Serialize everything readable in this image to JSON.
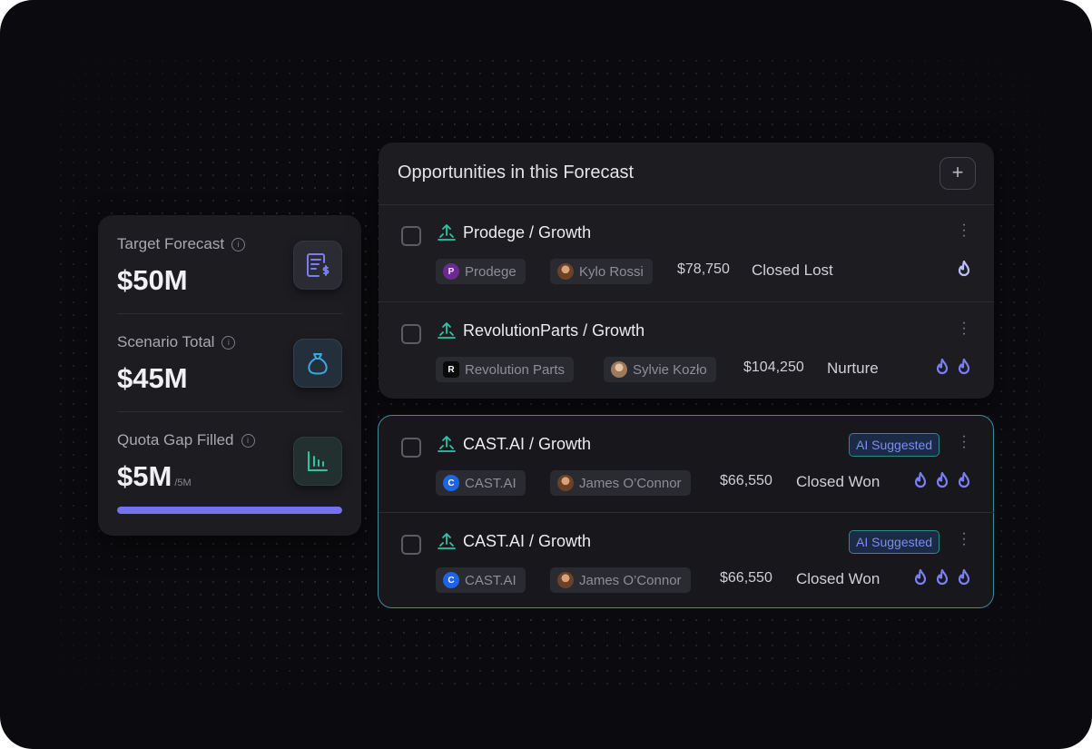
{
  "summary": {
    "metrics": [
      {
        "label": "Target Forecast",
        "value": "$50M",
        "icon": "invoice-dollar-icon"
      },
      {
        "label": "Scenario Total",
        "value": "$45M",
        "icon": "money-bag-icon"
      },
      {
        "label": "Quota Gap Filled",
        "value": "$5M",
        "suffix": "/5M",
        "icon": "bar-chart-icon"
      }
    ],
    "progress_fraction": 1.0,
    "progress_color": "#7472f0"
  },
  "forecast": {
    "title": "Opportunities in this Forecast",
    "add_label": "+",
    "opportunities": [
      {
        "title": "Prodege / Growth",
        "company": "Prodege",
        "owner": "Kylo Rossi",
        "amount": "$78,750",
        "stage": "Closed Lost",
        "heat": 1,
        "ai_suggested": false
      },
      {
        "title": "RevolutionParts / Growth",
        "company": "Revolution Parts",
        "owner": "Sylvie Kozło",
        "amount": "$104,250",
        "stage": "Nurture",
        "heat": 2,
        "ai_suggested": false
      },
      {
        "title": "CAST.AI / Growth",
        "company": "CAST.AI",
        "owner": "James O’Connor",
        "amount": "$66,550",
        "stage": "Closed Won",
        "heat": 3,
        "ai_suggested": true,
        "badge": "AI Suggested"
      },
      {
        "title": "CAST.AI / Growth",
        "company": "CAST.AI",
        "owner": "James O’Connor",
        "amount": "$66,550",
        "stage": "Closed Won",
        "heat": 3,
        "ai_suggested": true,
        "badge": "AI Suggested"
      }
    ]
  },
  "colors": {
    "accent": "#7472f0",
    "teal": "#2ec4a6",
    "flame": "#7b7ef2",
    "flame_single": "#bdbdf7",
    "ai_border": "#3f8a9e"
  }
}
